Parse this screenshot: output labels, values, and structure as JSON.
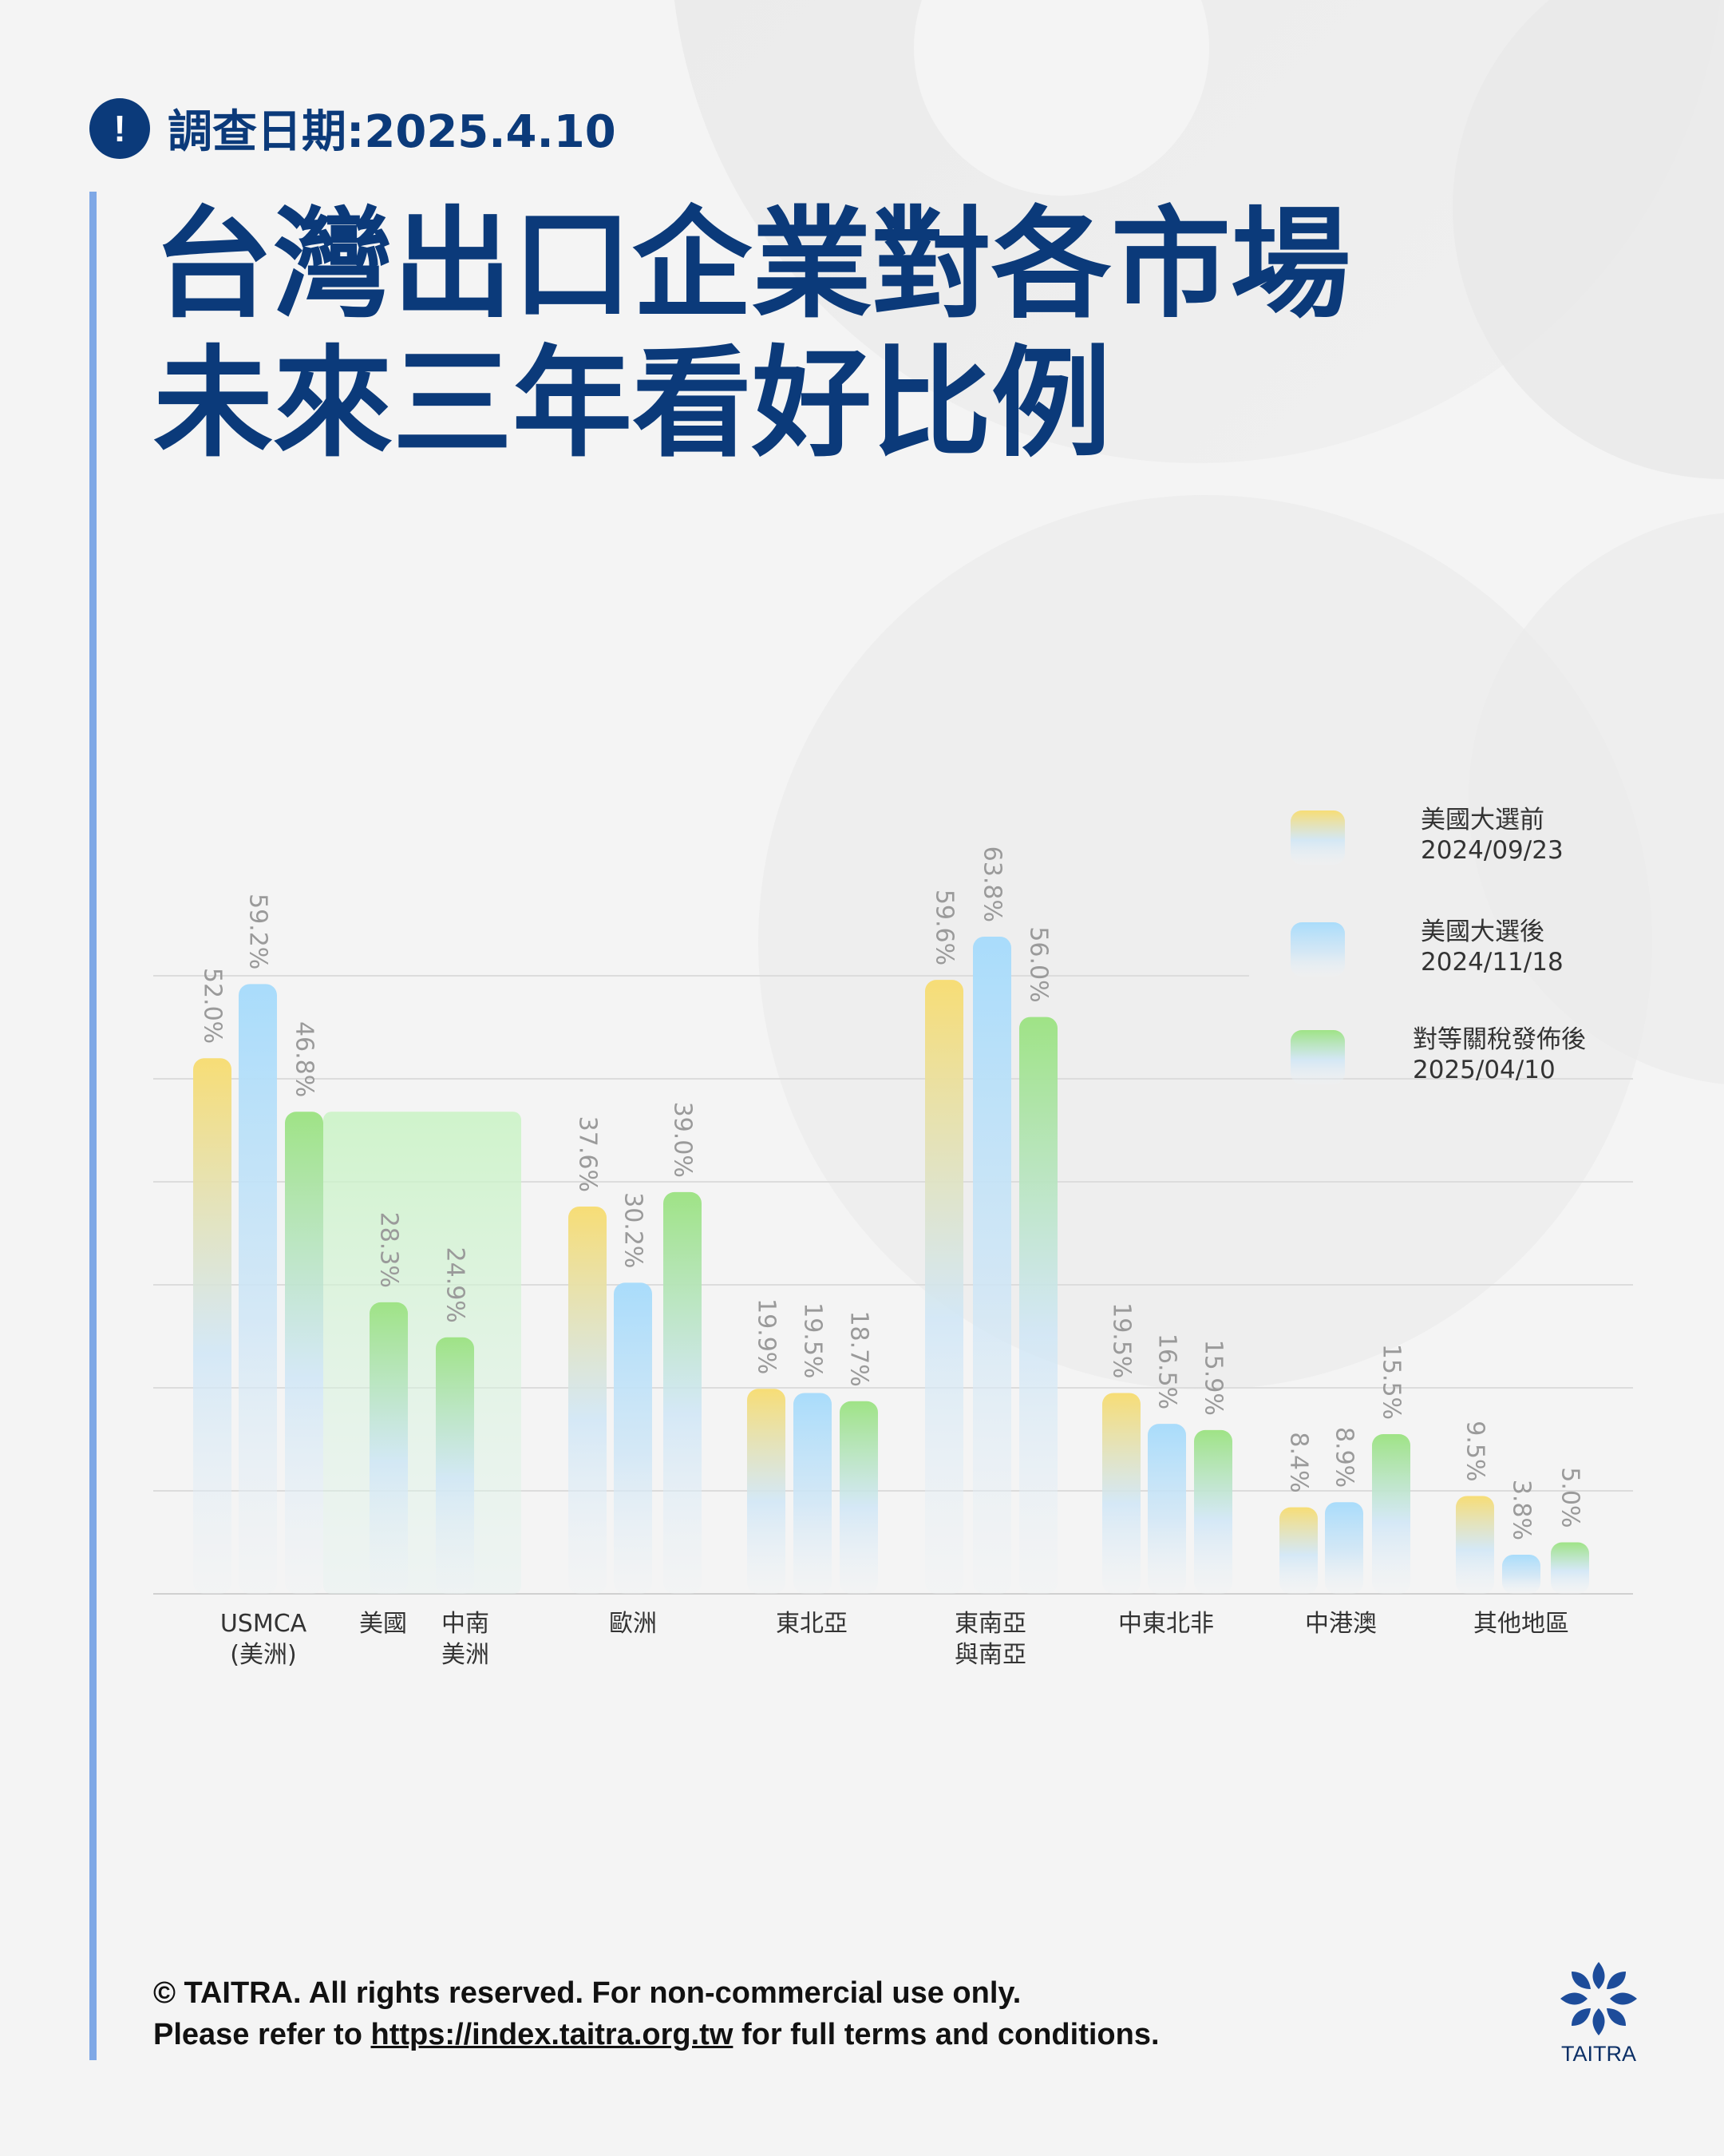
{
  "header": {
    "alert_icon": "!",
    "survey_date": "調查日期:2025.4.10",
    "title_line1": "台灣出口企業對各市場",
    "title_line2": "未來三年看好比例"
  },
  "chart_data": {
    "type": "bar",
    "title": "台灣出口企業對各市場未來三年看好比例",
    "ylim": [
      0,
      70
    ],
    "unit": "%",
    "grid": true,
    "legend_position": "top-right",
    "categories": [
      {
        "label": [
          "USMCA",
          "(美洲)"
        ]
      },
      {
        "label": [
          "美國"
        ]
      },
      {
        "label": [
          "中南",
          "美洲"
        ]
      },
      {
        "label": [
          "歐洲"
        ]
      },
      {
        "label": [
          "東北亞"
        ]
      },
      {
        "label": [
          "東南亞",
          "與南亞"
        ]
      },
      {
        "label": [
          "中東北非"
        ]
      },
      {
        "label": [
          "中港澳"
        ]
      },
      {
        "label": [
          "其他地區"
        ]
      }
    ],
    "series": [
      {
        "name": "美國大選前 2024/09/23",
        "legend_lines": [
          "美國大選前",
          "2024/09/23"
        ],
        "color": "#f7dd76",
        "values": [
          52.0,
          null,
          null,
          37.6,
          19.9,
          59.6,
          19.5,
          8.4,
          9.5
        ]
      },
      {
        "name": "美國大選後 2024/11/18",
        "legend_lines": [
          "美國大選後",
          "2024/11/18"
        ],
        "color": "#a9dcfb",
        "values": [
          59.2,
          null,
          null,
          30.2,
          19.5,
          63.8,
          16.5,
          8.9,
          3.8
        ]
      },
      {
        "name": "對等關稅發佈後 2025/04/10",
        "legend_lines": [
          "對等關稅發佈後",
          "2025/04/10"
        ],
        "color": "#9fe386",
        "values": [
          46.8,
          28.3,
          24.9,
          39.0,
          18.7,
          56.0,
          15.9,
          15.5,
          5.0
        ]
      }
    ],
    "data_labels": [
      [
        "52.0%",
        null,
        null,
        "37.6%",
        "19.9%",
        "59.6%",
        "19.5%",
        "8.4%",
        "9.5%"
      ],
      [
        "59.2%",
        null,
        null,
        "30.2%",
        "19.5%",
        "63.8%",
        "16.5%",
        "8.9%",
        "3.8%"
      ],
      [
        "46.8%",
        "28.3%",
        "24.9%",
        "39.0%",
        "18.7%",
        "56.0%",
        "15.9%",
        "15.5%",
        "5.0%"
      ]
    ],
    "breakdown": {
      "parent": 0,
      "children": [
        1,
        2
      ],
      "series": 2
    }
  },
  "footer": {
    "line1": "© TAITRA. All rights reserved. For non-commercial use only.",
    "line2_prefix": "Please refer to ",
    "line2_link": "https://index.taitra.org.tw",
    "line2_suffix": " for full terms and conditions."
  },
  "logo": {
    "text": "TAITRA",
    "icon": "taitra-logo-icon"
  }
}
